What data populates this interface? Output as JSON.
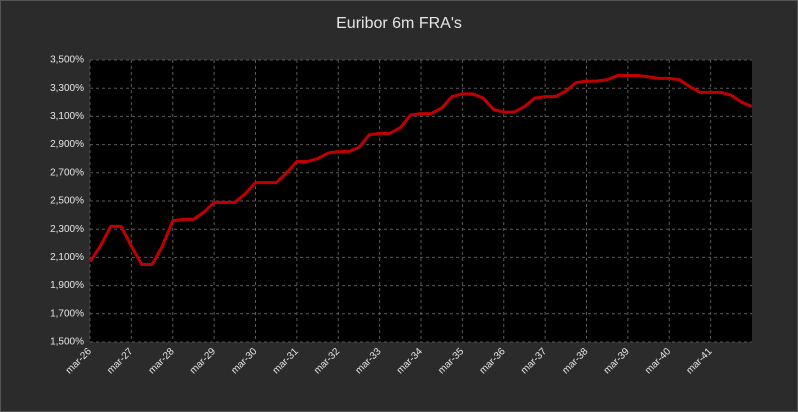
{
  "chart_data": {
    "type": "line",
    "title": "Euribor 6m FRA's",
    "categories": [
      "mar-26",
      null,
      null,
      null,
      "mar-27",
      null,
      null,
      null,
      "mar-28",
      null,
      null,
      null,
      "mar-29",
      null,
      null,
      null,
      "mar-30",
      null,
      null,
      null,
      "mar-31",
      null,
      null,
      null,
      "mar-32",
      null,
      null,
      null,
      "mar-33",
      null,
      null,
      null,
      "mar-34",
      null,
      null,
      null,
      "mar-35",
      null,
      null,
      null,
      "mar-36",
      null,
      null,
      null,
      "mar-37",
      null,
      null,
      null,
      "mar-38",
      null,
      null,
      null,
      "mar-39",
      null,
      null,
      null,
      "mar-40",
      null,
      null,
      null,
      "mar-41",
      null,
      null,
      null,
      null
    ],
    "series": [
      {
        "color": "#c00000",
        "values": [
          2.07,
          2.18,
          2.32,
          2.32,
          2.18,
          2.05,
          2.05,
          2.18,
          2.36,
          2.37,
          2.37,
          2.42,
          2.49,
          2.49,
          2.49,
          2.55,
          2.63,
          2.63,
          2.63,
          2.7,
          2.78,
          2.78,
          2.8,
          2.84,
          2.85,
          2.85,
          2.88,
          2.97,
          2.98,
          2.98,
          3.02,
          3.11,
          3.12,
          3.12,
          3.16,
          3.24,
          3.26,
          3.26,
          3.23,
          3.15,
          3.13,
          3.13,
          3.17,
          3.23,
          3.24,
          3.24,
          3.28,
          3.34,
          3.35,
          3.35,
          3.36,
          3.39,
          3.39,
          3.39,
          3.38,
          3.37,
          3.37,
          3.36,
          3.31,
          3.27,
          3.27,
          3.27,
          3.25,
          3.2,
          3.17
        ]
      }
    ],
    "ylim": [
      1.5,
      3.5
    ],
    "yticks": [
      {
        "value": 1.5,
        "label": "1,500%"
      },
      {
        "value": 1.7,
        "label": "1,700%"
      },
      {
        "value": 1.9,
        "label": "1,900%"
      },
      {
        "value": 2.1,
        "label": "2,100%"
      },
      {
        "value": 2.3,
        "label": "2,300%"
      },
      {
        "value": 2.5,
        "label": "2,500%"
      },
      {
        "value": 2.7,
        "label": "2,700%"
      },
      {
        "value": 2.9,
        "label": "2,900%"
      },
      {
        "value": 3.1,
        "label": "3,100%"
      },
      {
        "value": 3.3,
        "label": "3,300%"
      },
      {
        "value": 3.5,
        "label": "3,500%"
      }
    ],
    "grid": true
  }
}
